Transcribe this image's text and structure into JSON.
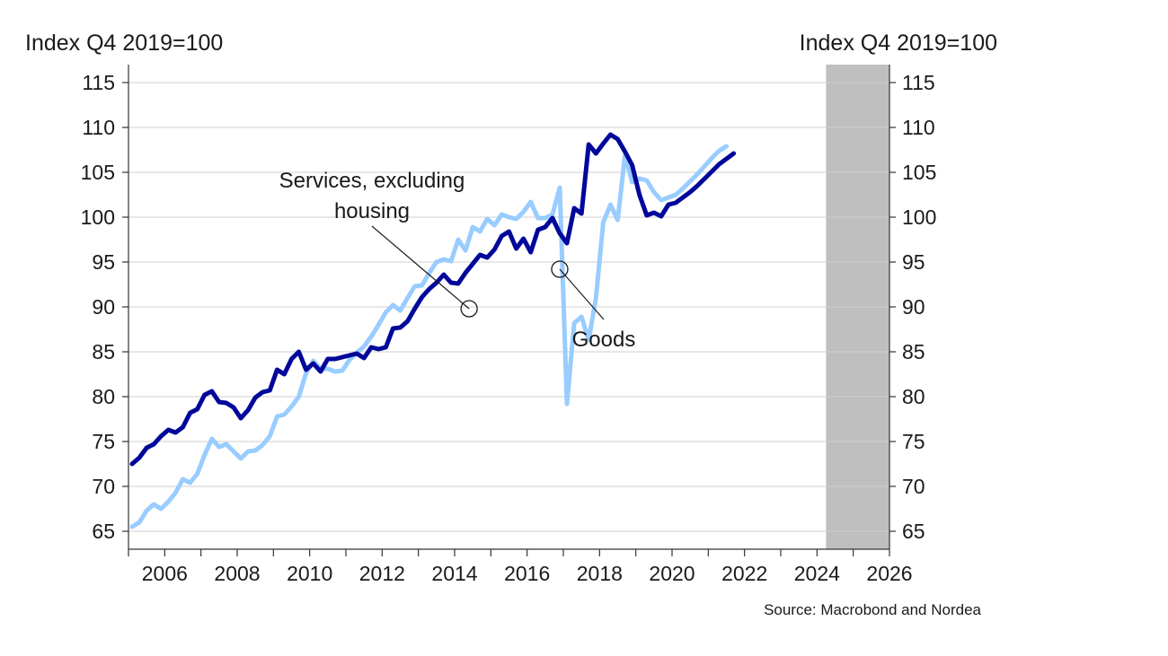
{
  "chart_data": {
    "type": "line",
    "ylabel_left": "Index Q4 2019=100",
    "ylabel_right": "Index Q4 2019=100",
    "source": "Source: Macrobond and Nordea",
    "xlim": [
      2005.0,
      2026.0
    ],
    "ylim": [
      63,
      117
    ],
    "yticks": [
      65,
      70,
      75,
      80,
      85,
      90,
      95,
      100,
      105,
      110,
      115
    ],
    "xticks": [
      2006,
      2008,
      2010,
      2012,
      2014,
      2016,
      2018,
      2020,
      2022,
      2024,
      2026
    ],
    "grid": "horizontal",
    "forecast_shading": {
      "from": 2024.25,
      "to": 2026.0,
      "color": "#bfbfbf"
    },
    "series": [
      {
        "key": "goods",
        "color": "#00079a",
        "points": [
          [
            2005.1,
            72.5
          ],
          [
            2005.3,
            73.2
          ],
          [
            2005.5,
            74.3
          ],
          [
            2005.7,
            74.7
          ],
          [
            2005.9,
            75.6
          ],
          [
            2006.1,
            76.3
          ],
          [
            2006.3,
            76.0
          ],
          [
            2006.5,
            76.6
          ],
          [
            2006.7,
            78.2
          ],
          [
            2006.9,
            78.6
          ],
          [
            2007.1,
            80.2
          ],
          [
            2007.3,
            80.6
          ],
          [
            2007.5,
            79.4
          ],
          [
            2007.7,
            79.3
          ],
          [
            2007.9,
            78.8
          ],
          [
            2008.1,
            77.6
          ],
          [
            2008.3,
            78.5
          ],
          [
            2008.5,
            79.9
          ],
          [
            2008.7,
            80.5
          ],
          [
            2008.9,
            80.7
          ],
          [
            2009.1,
            83.0
          ],
          [
            2009.3,
            82.5
          ],
          [
            2009.5,
            84.2
          ],
          [
            2009.7,
            85.0
          ],
          [
            2009.9,
            83.0
          ],
          [
            2010.1,
            83.7
          ],
          [
            2010.3,
            82.8
          ],
          [
            2010.5,
            84.2
          ],
          [
            2010.7,
            84.2
          ],
          [
            2010.9,
            84.4
          ],
          [
            2011.1,
            84.6
          ],
          [
            2011.3,
            84.8
          ],
          [
            2011.5,
            84.3
          ],
          [
            2011.7,
            85.5
          ],
          [
            2011.9,
            85.3
          ],
          [
            2012.1,
            85.5
          ],
          [
            2012.3,
            87.6
          ],
          [
            2012.5,
            87.7
          ],
          [
            2012.7,
            88.4
          ],
          [
            2012.9,
            89.8
          ],
          [
            2013.1,
            91.1
          ],
          [
            2013.3,
            92.0
          ],
          [
            2013.5,
            92.7
          ],
          [
            2013.7,
            93.6
          ],
          [
            2013.9,
            92.7
          ],
          [
            2014.1,
            92.6
          ],
          [
            2014.3,
            93.8
          ],
          [
            2014.5,
            94.8
          ],
          [
            2014.7,
            95.8
          ],
          [
            2014.9,
            95.5
          ],
          [
            2015.1,
            96.4
          ],
          [
            2015.3,
            97.9
          ],
          [
            2015.5,
            98.4
          ],
          [
            2015.7,
            96.5
          ],
          [
            2015.9,
            97.6
          ],
          [
            2016.1,
            96.1
          ],
          [
            2016.3,
            98.6
          ],
          [
            2016.5,
            98.9
          ],
          [
            2016.7,
            99.9
          ],
          [
            2016.9,
            98.2
          ],
          [
            2017.1,
            97.1
          ],
          [
            2017.3,
            101.0
          ],
          [
            2017.5,
            100.4
          ],
          [
            2017.7,
            108.1
          ],
          [
            2017.9,
            107.1
          ],
          [
            2018.1,
            108.2
          ],
          [
            2018.3,
            109.2
          ],
          [
            2018.5,
            108.7
          ],
          [
            2018.7,
            107.3
          ],
          [
            2018.9,
            105.8
          ],
          [
            2019.1,
            102.5
          ],
          [
            2019.3,
            100.2
          ],
          [
            2019.5,
            100.5
          ],
          [
            2019.7,
            100.1
          ],
          [
            2019.9,
            101.4
          ],
          [
            2020.1,
            101.6
          ],
          [
            2020.3,
            102.2
          ],
          [
            2020.5,
            102.8
          ],
          [
            2020.7,
            103.5
          ],
          [
            2020.9,
            104.3
          ],
          [
            2021.1,
            105.1
          ],
          [
            2021.3,
            105.9
          ],
          [
            2021.5,
            106.5
          ],
          [
            2021.7,
            107.1
          ]
        ]
      },
      {
        "key": "services",
        "color": "#99ccff",
        "points": [
          [
            2005.1,
            65.5
          ],
          [
            2005.3,
            66.0
          ],
          [
            2005.5,
            67.3
          ],
          [
            2005.7,
            68.0
          ],
          [
            2005.9,
            67.5
          ],
          [
            2006.1,
            68.3
          ],
          [
            2006.3,
            69.3
          ],
          [
            2006.5,
            70.8
          ],
          [
            2006.7,
            70.4
          ],
          [
            2006.9,
            71.4
          ],
          [
            2007.1,
            73.5
          ],
          [
            2007.3,
            75.3
          ],
          [
            2007.5,
            74.4
          ],
          [
            2007.7,
            74.7
          ],
          [
            2007.9,
            73.9
          ],
          [
            2008.1,
            73.1
          ],
          [
            2008.3,
            73.9
          ],
          [
            2008.5,
            74.0
          ],
          [
            2008.7,
            74.6
          ],
          [
            2008.9,
            75.6
          ],
          [
            2009.1,
            77.8
          ],
          [
            2009.3,
            78.0
          ],
          [
            2009.5,
            78.9
          ],
          [
            2009.7,
            80.0
          ],
          [
            2009.9,
            82.6
          ],
          [
            2010.1,
            84.0
          ],
          [
            2010.3,
            83.1
          ],
          [
            2010.5,
            83.1
          ],
          [
            2010.7,
            82.8
          ],
          [
            2010.9,
            82.9
          ],
          [
            2011.1,
            84.1
          ],
          [
            2011.3,
            84.9
          ],
          [
            2011.5,
            85.6
          ],
          [
            2011.7,
            86.7
          ],
          [
            2011.9,
            88.0
          ],
          [
            2012.1,
            89.4
          ],
          [
            2012.3,
            90.2
          ],
          [
            2012.5,
            89.6
          ],
          [
            2012.7,
            91.0
          ],
          [
            2012.9,
            92.3
          ],
          [
            2013.1,
            92.4
          ],
          [
            2013.3,
            93.8
          ],
          [
            2013.5,
            95.0
          ],
          [
            2013.7,
            95.3
          ],
          [
            2013.9,
            95.1
          ],
          [
            2014.1,
            97.5
          ],
          [
            2014.3,
            96.3
          ],
          [
            2014.5,
            98.9
          ],
          [
            2014.7,
            98.4
          ],
          [
            2014.9,
            99.8
          ],
          [
            2015.1,
            99.1
          ],
          [
            2015.3,
            100.3
          ],
          [
            2015.5,
            100.0
          ],
          [
            2015.7,
            99.8
          ],
          [
            2015.9,
            100.6
          ],
          [
            2016.1,
            101.7
          ],
          [
            2016.3,
            99.9
          ],
          [
            2016.5,
            99.9
          ],
          [
            2016.7,
            100.3
          ],
          [
            2016.9,
            103.3
          ],
          [
            2017.1,
            79.2
          ],
          [
            2017.3,
            88.2
          ],
          [
            2017.5,
            88.9
          ],
          [
            2017.7,
            86.3
          ],
          [
            2017.9,
            91.0
          ],
          [
            2018.1,
            99.4
          ],
          [
            2018.3,
            101.4
          ],
          [
            2018.5,
            99.7
          ],
          [
            2018.7,
            106.9
          ],
          [
            2018.9,
            103.9
          ],
          [
            2019.1,
            104.3
          ],
          [
            2019.3,
            104.1
          ],
          [
            2019.5,
            102.8
          ],
          [
            2019.7,
            101.9
          ],
          [
            2019.9,
            102.2
          ],
          [
            2020.1,
            102.5
          ],
          [
            2020.3,
            103.2
          ],
          [
            2020.5,
            104.0
          ],
          [
            2020.7,
            104.8
          ],
          [
            2020.9,
            105.7
          ],
          [
            2021.1,
            106.6
          ],
          [
            2021.3,
            107.4
          ],
          [
            2021.5,
            107.9
          ]
        ]
      }
    ],
    "annotations": [
      {
        "text_lines": [
          "Services, excluding",
          "housing"
        ],
        "series_key": "services",
        "target": [
          2014.4,
          89.8
        ]
      },
      {
        "text_lines": [
          "Goods"
        ],
        "series_key": "goods",
        "target": [
          2016.9,
          94.2
        ]
      }
    ]
  }
}
